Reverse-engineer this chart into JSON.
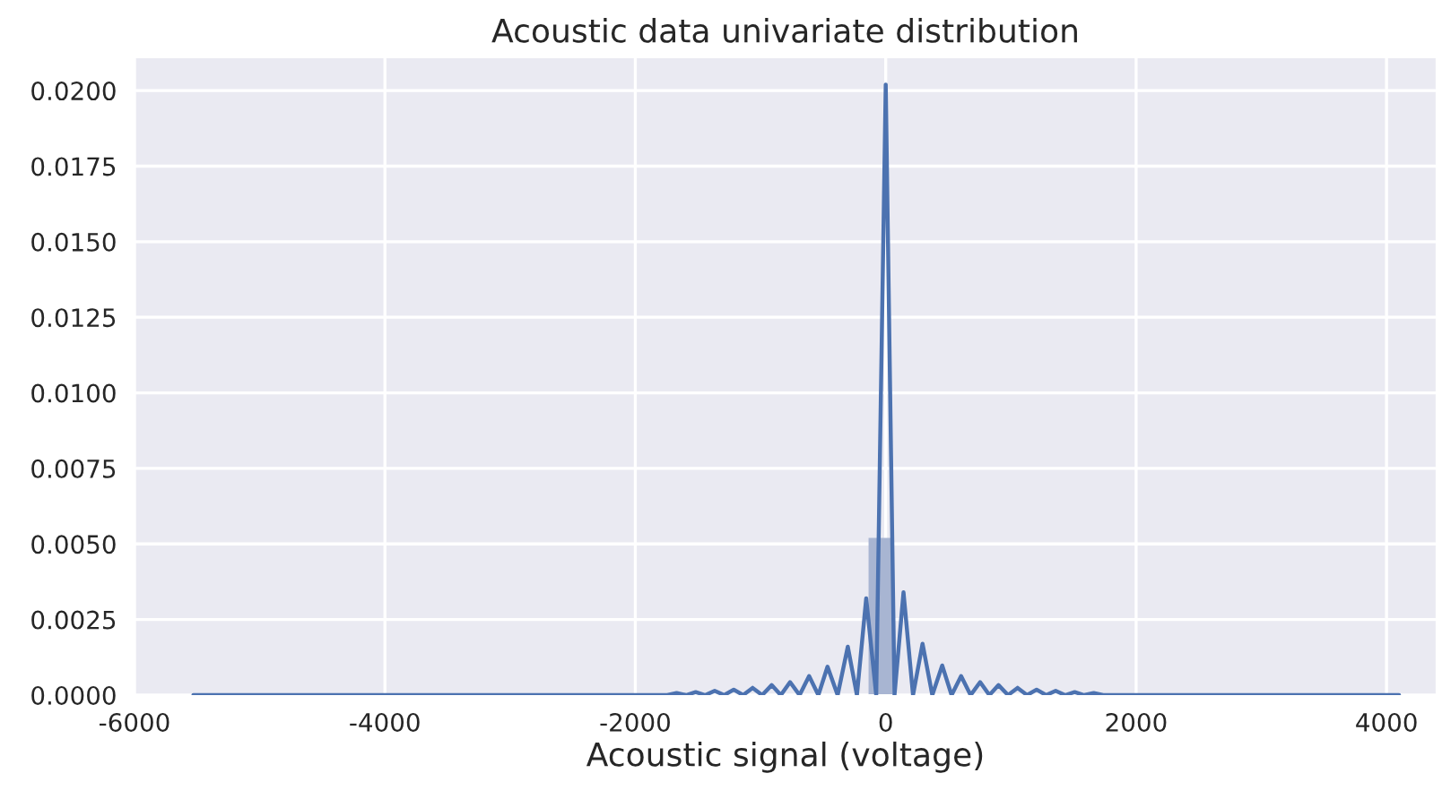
{
  "chart_data": {
    "type": "histogram",
    "title": "Acoustic data univariate distribution",
    "xlabel": "Acoustic signal (voltage)",
    "bins": [
      -137,
      55
    ],
    "values": [
      0.0052
    ],
    "color": "#a8b5d2",
    "series": [
      {
        "type": "line",
        "color": "#4c72b0",
        "x": [
          -5530,
          -1745,
          -1670,
          -1594,
          -1518,
          -1442,
          -1366,
          -1290,
          -1214,
          -1139,
          -1063,
          -987,
          -911,
          -838,
          -764,
          -688,
          -612,
          -538,
          -465,
          -384,
          -303,
          -230,
          -156,
          -76,
          0,
          70,
          142,
          218,
          294,
          372,
          451,
          526,
          602,
          678,
          754,
          828,
          901,
          977,
          1053,
          1129,
          1205,
          1281,
          1357,
          1433,
          1509,
          1585,
          1661,
          1737,
          4100
        ],
        "values": [
          0,
          0,
          7e-05,
          0,
          0.0001,
          0,
          0.00014,
          0,
          0.00018,
          0,
          0.00024,
          0,
          0.00033,
          0,
          0.00043,
          0,
          0.00063,
          0,
          0.00094,
          0,
          0.0016,
          0,
          0.0032,
          0,
          0.0202,
          0,
          0.0034,
          0,
          0.0017,
          0,
          0.00098,
          0,
          0.00063,
          0,
          0.00043,
          0,
          0.00033,
          0,
          0.00024,
          0,
          0.00018,
          0,
          0.00014,
          0,
          0.0001,
          0,
          7e-05,
          0,
          0
        ]
      }
    ],
    "xlim": [
      -6000,
      4400
    ],
    "xticks": [
      -6000,
      -4000,
      -2000,
      0,
      2000,
      4000
    ],
    "ylim": [
      0,
      0.0211
    ],
    "yticks": [
      {
        "value": 0,
        "label": "0.0000"
      },
      {
        "value": 0.0025,
        "label": "0.0025"
      },
      {
        "value": 0.005,
        "label": "0.0050"
      },
      {
        "value": 0.0075,
        "label": "0.0075"
      },
      {
        "value": 0.01,
        "label": "0.0100"
      },
      {
        "value": 0.0125,
        "label": "0.0125"
      },
      {
        "value": 0.015,
        "label": "0.0150"
      },
      {
        "value": 0.0175,
        "label": "0.0175"
      },
      {
        "value": 0.02,
        "label": "0.0200"
      }
    ],
    "grid": true
  }
}
